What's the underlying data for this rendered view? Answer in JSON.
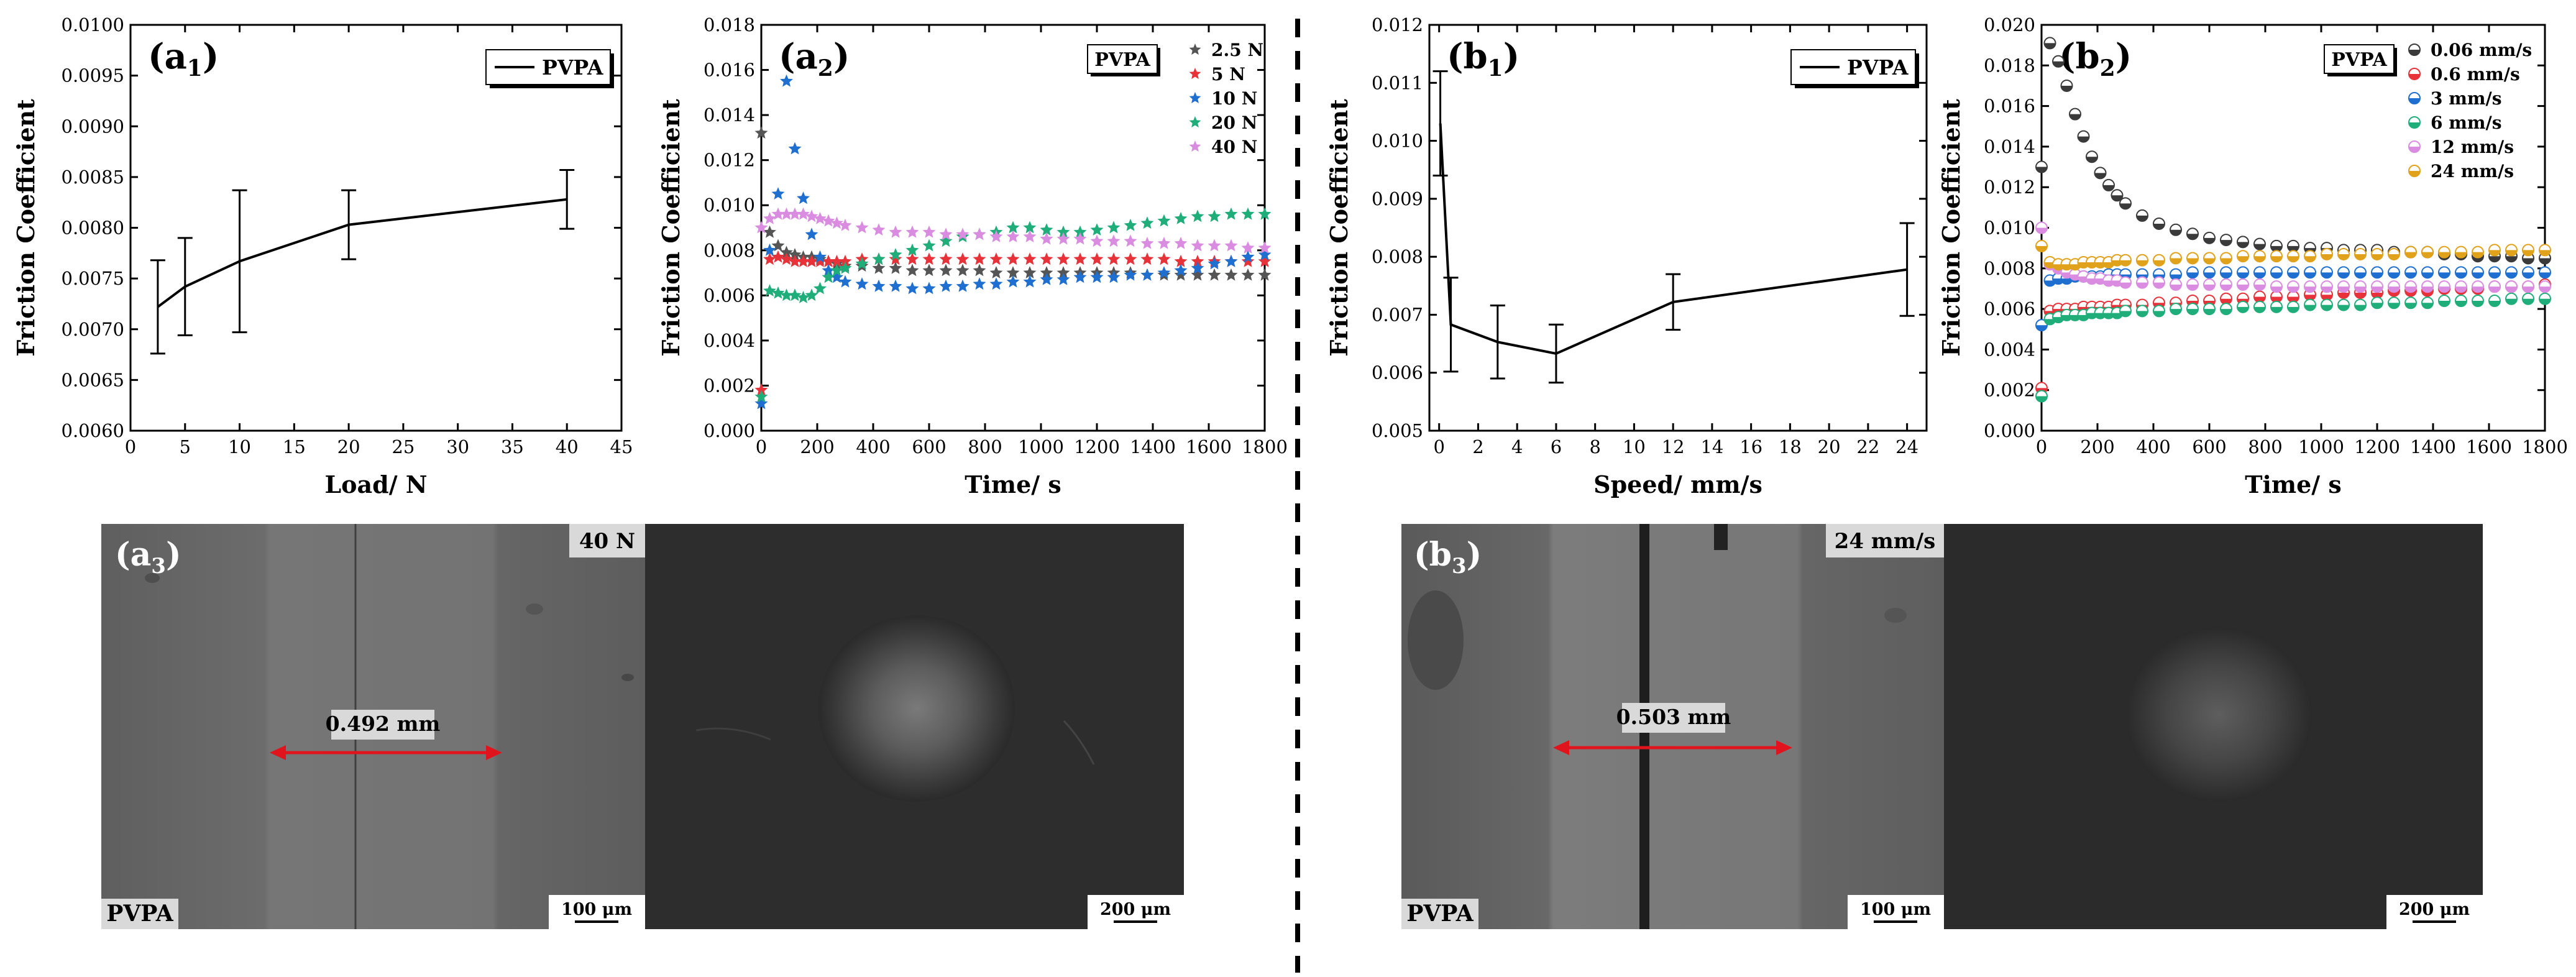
{
  "chart_data": [
    {
      "id": "a1",
      "type": "line",
      "panel_label": "(a",
      "panel_sub": "1",
      "legend": [
        "PVPA"
      ],
      "xlabel": "Load/ N",
      "ylabel": "Friction Coefficient",
      "xlim": [
        0,
        45
      ],
      "ylim": [
        0.006,
        0.01
      ],
      "xticks": [
        0,
        5,
        10,
        15,
        20,
        25,
        30,
        35,
        40,
        45
      ],
      "yticks": [
        0.006,
        0.0065,
        0.007,
        0.0075,
        0.008,
        0.0085,
        0.009,
        0.0095,
        0.01
      ],
      "ytick_labels": [
        "0.0060",
        "0.0065",
        "0.0070",
        "0.0075",
        "0.0080",
        "0.0085",
        "0.0090",
        "0.0095",
        "0.0100"
      ],
      "series": [
        {
          "name": "PVPA",
          "color": "#000000",
          "x": [
            2.5,
            5,
            10,
            20,
            40
          ],
          "y": [
            0.00722,
            0.00742,
            0.00767,
            0.00803,
            0.00828
          ],
          "err": [
            0.00046,
            0.00048,
            0.0007,
            0.00034,
            0.00029
          ]
        }
      ]
    },
    {
      "id": "a2",
      "type": "scatter",
      "panel_label": "(a",
      "panel_sub": "2",
      "legend_box": "PVPA",
      "xlabel": "Time/ s",
      "ylabel": "Friction Coefficient",
      "xlim": [
        0,
        1800
      ],
      "ylim": [
        0,
        0.018
      ],
      "xticks": [
        0,
        200,
        400,
        600,
        800,
        1000,
        1200,
        1400,
        1600,
        1800
      ],
      "yticks": [
        0,
        0.002,
        0.004,
        0.006,
        0.008,
        0.01,
        0.012,
        0.014,
        0.016,
        0.018
      ],
      "ytick_labels": [
        "0.000",
        "0.002",
        "0.004",
        "0.006",
        "0.008",
        "0.010",
        "0.012",
        "0.014",
        "0.016",
        "0.018"
      ],
      "marker": "star",
      "x": [
        0,
        30,
        60,
        90,
        120,
        150,
        180,
        210,
        240,
        270,
        300,
        360,
        420,
        480,
        540,
        600,
        660,
        720,
        780,
        840,
        900,
        960,
        1020,
        1080,
        1140,
        1200,
        1260,
        1320,
        1380,
        1440,
        1500,
        1560,
        1620,
        1680,
        1740,
        1800
      ],
      "series": [
        {
          "name": "2.5 N",
          "color": "#555555",
          "values": [
            0.0132,
            0.0088,
            0.0082,
            0.0079,
            0.0078,
            0.0077,
            0.0077,
            0.0076,
            0.0075,
            0.0074,
            0.0073,
            0.0073,
            0.0072,
            0.0072,
            0.0071,
            0.0071,
            0.0071,
            0.0071,
            0.0071,
            0.007,
            0.007,
            0.007,
            0.007,
            0.007,
            0.007,
            0.007,
            0.007,
            0.007,
            0.0069,
            0.0069,
            0.0069,
            0.0069,
            0.0069,
            0.0069,
            0.0069,
            0.0069
          ]
        },
        {
          "name": "5 N",
          "color": "#e8323a",
          "values": [
            0.0018,
            0.0076,
            0.0077,
            0.0076,
            0.0075,
            0.0075,
            0.0075,
            0.0075,
            0.0075,
            0.0075,
            0.0075,
            0.0076,
            0.0076,
            0.0076,
            0.0076,
            0.0076,
            0.0076,
            0.0076,
            0.0076,
            0.0076,
            0.0076,
            0.0076,
            0.0076,
            0.0076,
            0.0076,
            0.0076,
            0.0076,
            0.0076,
            0.0076,
            0.0076,
            0.0075,
            0.0075,
            0.0075,
            0.0075,
            0.0075,
            0.0075
          ]
        },
        {
          "name": "10 N",
          "color": "#1f6fd0",
          "values": [
            0.0012,
            0.008,
            0.0105,
            0.0155,
            0.0125,
            0.0103,
            0.0087,
            0.0077,
            0.0071,
            0.0068,
            0.0066,
            0.0065,
            0.0064,
            0.0064,
            0.0063,
            0.0063,
            0.0064,
            0.0064,
            0.0065,
            0.0065,
            0.0066,
            0.0066,
            0.0067,
            0.0067,
            0.0068,
            0.0068,
            0.0068,
            0.0069,
            0.0069,
            0.007,
            0.0071,
            0.0072,
            0.0074,
            0.0075,
            0.0077,
            0.0078
          ]
        },
        {
          "name": "20 N",
          "color": "#1fae7a",
          "values": [
            0.0015,
            0.0062,
            0.0061,
            0.006,
            0.006,
            0.0059,
            0.006,
            0.0063,
            0.0068,
            0.0071,
            0.0072,
            0.0074,
            0.0076,
            0.0078,
            0.008,
            0.0082,
            0.0084,
            0.0086,
            0.0087,
            0.0088,
            0.009,
            0.009,
            0.0089,
            0.0088,
            0.0088,
            0.0089,
            0.009,
            0.0091,
            0.0092,
            0.0093,
            0.0094,
            0.0095,
            0.0095,
            0.0096,
            0.0096,
            0.0096
          ]
        },
        {
          "name": "40 N",
          "color": "#d98ce0",
          "values": [
            0.009,
            0.0094,
            0.0096,
            0.0096,
            0.0096,
            0.0096,
            0.0095,
            0.0094,
            0.0093,
            0.0092,
            0.0091,
            0.009,
            0.0089,
            0.0088,
            0.0088,
            0.0088,
            0.0087,
            0.0087,
            0.0087,
            0.0086,
            0.0086,
            0.0086,
            0.0085,
            0.0085,
            0.0085,
            0.0084,
            0.0084,
            0.0084,
            0.0083,
            0.0083,
            0.0083,
            0.0082,
            0.0082,
            0.0082,
            0.0081,
            0.0081
          ]
        }
      ]
    },
    {
      "id": "b1",
      "type": "line",
      "panel_label": "(b",
      "panel_sub": "1",
      "legend": [
        "PVPA"
      ],
      "xlabel": "Speed/ mm/s",
      "ylabel": "Friction Coefficient",
      "xlim": [
        -0.5,
        25
      ],
      "ylim": [
        0.005,
        0.012
      ],
      "xticks": [
        0,
        2,
        4,
        6,
        8,
        10,
        12,
        14,
        16,
        18,
        20,
        22,
        24
      ],
      "yticks": [
        0.005,
        0.006,
        0.007,
        0.008,
        0.009,
        0.01,
        0.011,
        0.012
      ],
      "ytick_labels": [
        "0.005",
        "0.006",
        "0.007",
        "0.008",
        "0.009",
        "0.010",
        "0.011",
        "0.012"
      ],
      "series": [
        {
          "name": "PVPA",
          "color": "#000000",
          "x": [
            0.06,
            0.6,
            3,
            6,
            12,
            24
          ],
          "y": [
            0.0103,
            0.00683,
            0.00653,
            0.00633,
            0.00722,
            0.00778
          ],
          "err": [
            0.0009,
            0.00081,
            0.00063,
            0.0005,
            0.00048,
            0.0008
          ]
        }
      ]
    },
    {
      "id": "b2",
      "type": "scatter",
      "panel_label": "(b",
      "panel_sub": "2",
      "legend_box": "PVPA",
      "xlabel": "Time/ s",
      "ylabel": "Friction Coefficient",
      "xlim": [
        0,
        1800
      ],
      "ylim": [
        0,
        0.02
      ],
      "xticks": [
        0,
        200,
        400,
        600,
        800,
        1000,
        1200,
        1400,
        1600,
        1800
      ],
      "yticks": [
        0,
        0.002,
        0.004,
        0.006,
        0.008,
        0.01,
        0.012,
        0.014,
        0.016,
        0.018,
        0.02
      ],
      "ytick_labels": [
        "0.000",
        "0.002",
        "0.004",
        "0.006",
        "0.008",
        "0.010",
        "0.012",
        "0.014",
        "0.016",
        "0.018",
        "0.020"
      ],
      "marker": "half-circle",
      "x": [
        0,
        30,
        60,
        90,
        120,
        150,
        180,
        210,
        240,
        270,
        300,
        360,
        420,
        480,
        540,
        600,
        660,
        720,
        780,
        840,
        900,
        960,
        1020,
        1080,
        1140,
        1200,
        1260,
        1320,
        1380,
        1440,
        1500,
        1560,
        1620,
        1680,
        1740,
        1800
      ],
      "series": [
        {
          "name": "0.06 mm/s",
          "color": "#3a3a3a",
          "values": [
            0.013,
            0.0191,
            0.0182,
            0.017,
            0.0156,
            0.0145,
            0.0135,
            0.0127,
            0.0121,
            0.0116,
            0.0112,
            0.0106,
            0.0102,
            0.0099,
            0.0097,
            0.0095,
            0.0094,
            0.0093,
            0.0092,
            0.0091,
            0.0091,
            0.009,
            0.009,
            0.0089,
            0.0089,
            0.0089,
            0.0088,
            0.0088,
            0.0088,
            0.0087,
            0.0087,
            0.0086,
            0.0086,
            0.0086,
            0.0085,
            0.0085
          ]
        },
        {
          "name": "0.6 mm/s",
          "color": "#e8323a",
          "values": [
            0.0021,
            0.0059,
            0.006,
            0.006,
            0.006,
            0.0061,
            0.0061,
            0.0061,
            0.0061,
            0.0062,
            0.0062,
            0.0062,
            0.0063,
            0.0063,
            0.0064,
            0.0064,
            0.0065,
            0.0065,
            0.0066,
            0.0066,
            0.0066,
            0.0067,
            0.0067,
            0.0068,
            0.0068,
            0.0068,
            0.0069,
            0.0069,
            0.0069,
            0.007,
            0.007,
            0.007,
            0.0071,
            0.0071,
            0.0071,
            0.0072
          ]
        },
        {
          "name": "3 mm/s",
          "color": "#1f6fd0",
          "values": [
            0.0052,
            0.0074,
            0.0075,
            0.0075,
            0.0076,
            0.0076,
            0.0076,
            0.0076,
            0.0077,
            0.0077,
            0.0077,
            0.0077,
            0.0077,
            0.0077,
            0.0078,
            0.0078,
            0.0078,
            0.0078,
            0.0078,
            0.0078,
            0.0078,
            0.0078,
            0.0078,
            0.0078,
            0.0078,
            0.0078,
            0.0078,
            0.0078,
            0.0078,
            0.0078,
            0.0078,
            0.0078,
            0.0078,
            0.0078,
            0.0078,
            0.0078
          ]
        },
        {
          "name": "6 mm/s",
          "color": "#1fae7a",
          "values": [
            0.0017,
            0.0055,
            0.0056,
            0.0057,
            0.0057,
            0.0057,
            0.0058,
            0.0058,
            0.0058,
            0.0058,
            0.0059,
            0.0059,
            0.0059,
            0.006,
            0.006,
            0.006,
            0.006,
            0.0061,
            0.0061,
            0.0061,
            0.0061,
            0.0062,
            0.0062,
            0.0062,
            0.0062,
            0.0063,
            0.0063,
            0.0063,
            0.0063,
            0.0064,
            0.0064,
            0.0064,
            0.0064,
            0.0065,
            0.0065,
            0.0065
          ]
        },
        {
          "name": "12 mm/s",
          "color": "#d98ce0",
          "values": [
            0.01,
            0.0082,
            0.008,
            0.0078,
            0.0077,
            0.0076,
            0.0075,
            0.0075,
            0.0074,
            0.0074,
            0.0073,
            0.0073,
            0.0073,
            0.0072,
            0.0072,
            0.0072,
            0.0072,
            0.0072,
            0.0072,
            0.0071,
            0.0071,
            0.0071,
            0.0071,
            0.0071,
            0.0071,
            0.0071,
            0.0071,
            0.0071,
            0.0071,
            0.0071,
            0.0071,
            0.0071,
            0.0071,
            0.0071,
            0.0071,
            0.0071
          ]
        },
        {
          "name": "24 mm/s",
          "color": "#e0a21a",
          "values": [
            0.0091,
            0.0083,
            0.0082,
            0.0082,
            0.0082,
            0.0083,
            0.0083,
            0.0083,
            0.0083,
            0.0084,
            0.0084,
            0.0084,
            0.0084,
            0.0085,
            0.0085,
            0.0085,
            0.0085,
            0.0086,
            0.0086,
            0.0086,
            0.0086,
            0.0086,
            0.0087,
            0.0087,
            0.0087,
            0.0087,
            0.0087,
            0.0088,
            0.0088,
            0.0088,
            0.0088,
            0.0088,
            0.0089,
            0.0089,
            0.0089,
            0.0089
          ]
        }
      ]
    }
  ],
  "micrographs": {
    "a3": {
      "panel_label": "(a",
      "panel_sub": "3",
      "condition": "40 N",
      "sample": "PVPA",
      "measurement": "0.492 mm",
      "scalebar_left": "100 μm",
      "scalebar_right": "200 μm"
    },
    "b3": {
      "panel_label": "(b",
      "panel_sub": "3",
      "condition": "24 mm/s",
      "sample": "PVPA",
      "measurement": "0.503 mm",
      "scalebar_left": "100 μm",
      "scalebar_right": "200 μm"
    }
  }
}
